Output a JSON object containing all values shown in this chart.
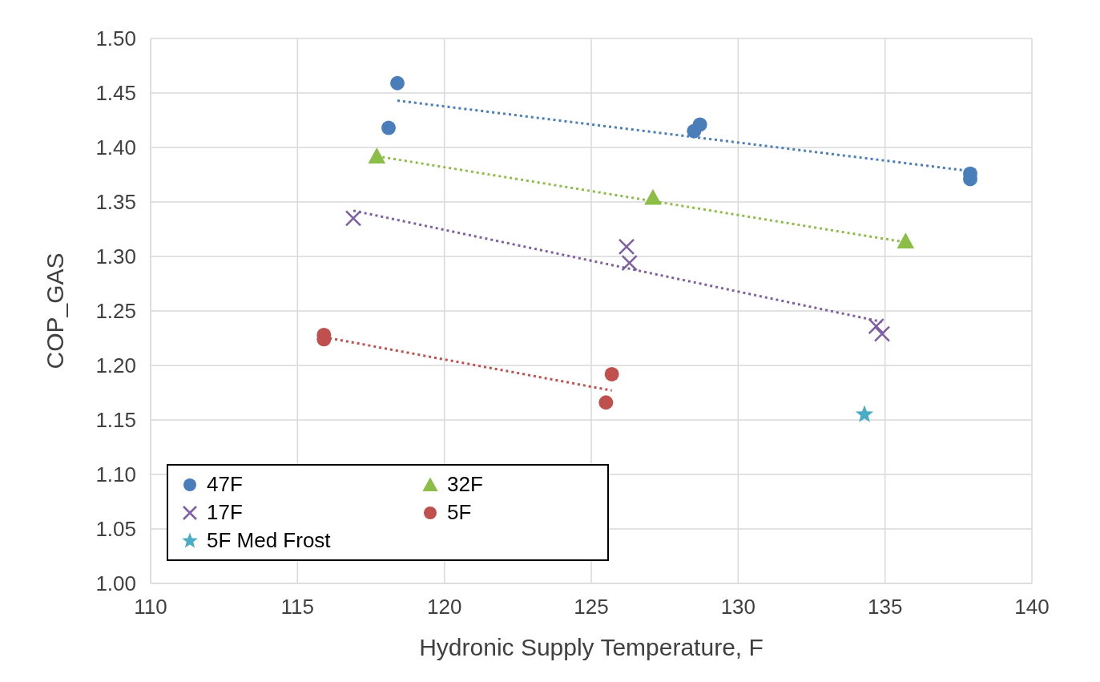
{
  "chart_data": {
    "type": "scatter",
    "xlabel": "Hydronic Supply Temperature,  F",
    "ylabel": "COP_GAS",
    "xlim": [
      110,
      140
    ],
    "xticks": [
      110,
      115,
      120,
      125,
      130,
      135,
      140
    ],
    "ylim": [
      1.0,
      1.5
    ],
    "yticks": [
      {
        "value": 1.0,
        "label": "1.00"
      },
      {
        "value": 1.05,
        "label": "1.05"
      },
      {
        "value": 1.1,
        "label": "1.10"
      },
      {
        "value": 1.15,
        "label": "1.15"
      },
      {
        "value": 1.2,
        "label": "1.20"
      },
      {
        "value": 1.25,
        "label": "1.25"
      },
      {
        "value": 1.3,
        "label": "1.30"
      },
      {
        "value": 1.35,
        "label": "1.35"
      },
      {
        "value": 1.4,
        "label": "1.40"
      },
      {
        "value": 1.45,
        "label": "1.45"
      },
      {
        "value": 1.5,
        "label": "1.50"
      }
    ],
    "grid": true,
    "legend": "bottom left",
    "series": [
      {
        "name": "47F",
        "color": "#4a7ebb",
        "marker": "circle",
        "x": [
          118.4,
          118.1,
          128.5,
          128.7,
          137.9,
          137.9
        ],
        "values": [
          1.459,
          1.418,
          1.415,
          1.421,
          1.376,
          1.371
        ]
      },
      {
        "name": "32F",
        "color": "#8cbd46",
        "marker": "triangle",
        "x": [
          117.7,
          127.1,
          135.7
        ],
        "values": [
          1.392,
          1.354,
          1.314
        ]
      },
      {
        "name": "17F",
        "color": "#7e5fa3",
        "marker": "cross",
        "x": [
          116.9,
          126.2,
          126.3,
          134.7,
          134.9
        ],
        "values": [
          1.335,
          1.309,
          1.294,
          1.236,
          1.229
        ]
      },
      {
        "name": "5F",
        "color": "#c0504d",
        "marker": "circle",
        "x": [
          115.9,
          115.9,
          125.7,
          125.5
        ],
        "values": [
          1.228,
          1.224,
          1.192,
          1.166
        ]
      },
      {
        "name": "5F Med Frost",
        "color": "#4bacc6",
        "marker": "star",
        "x": [
          134.3
        ],
        "values": [
          1.155
        ]
      },
      {
        "type": "line",
        "color": "#4a7ebb",
        "line_style": "dotted",
        "marker": "none",
        "x": [
          118.4,
          138
        ],
        "values": [
          1.443,
          1.378
        ]
      },
      {
        "type": "line",
        "color": "#8cbd46",
        "line_style": "dotted",
        "marker": "none",
        "x": [
          117.7,
          135.7
        ],
        "values": [
          1.392,
          1.313
        ]
      },
      {
        "type": "line",
        "color": "#7e5fa3",
        "line_style": "dotted",
        "marker": "none",
        "x": [
          116.9,
          134.9
        ],
        "values": [
          1.342,
          1.24
        ]
      },
      {
        "type": "line",
        "color": "#c0504d",
        "line_style": "dotted",
        "marker": "none",
        "x": [
          115.9,
          125.7
        ],
        "values": [
          1.226,
          1.177
        ]
      }
    ]
  }
}
